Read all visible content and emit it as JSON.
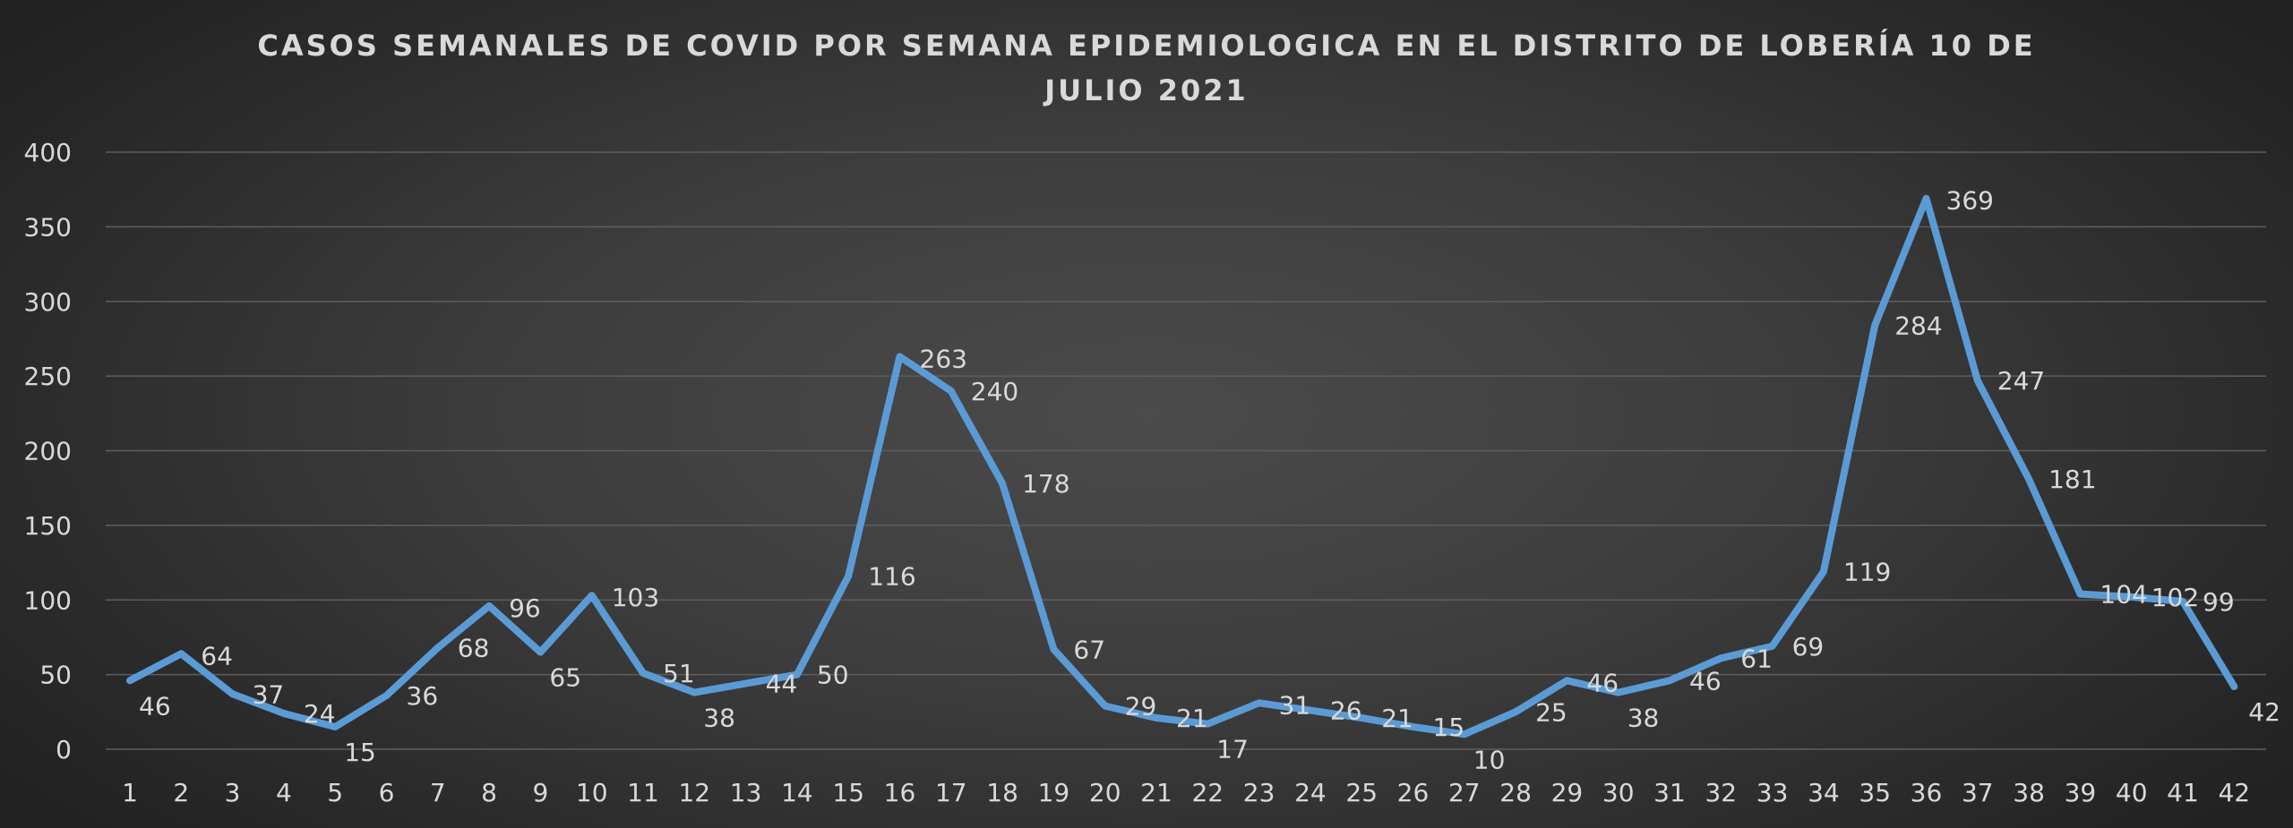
{
  "chart_data": {
    "type": "line",
    "title_lines": [
      "CASOS SEMANALES DE COVID POR SEMANA EPIDEMIOLOGICA EN EL DISTRITO DE LOBERÍA 10 DE",
      "JULIO 2021"
    ],
    "xlabel": "",
    "ylabel": "",
    "ylim": [
      0,
      400
    ],
    "yticks": [
      0,
      50,
      100,
      150,
      200,
      250,
      300,
      350,
      400
    ],
    "grid": true,
    "legend": "none",
    "x": [
      "1",
      "2",
      "3",
      "4",
      "5",
      "6",
      "7",
      "8",
      "9",
      "10",
      "11",
      "12",
      "13",
      "14",
      "15",
      "16",
      "17",
      "18",
      "19",
      "20",
      "21",
      "22",
      "23",
      "24",
      "25",
      "26",
      "27",
      "28",
      "29",
      "30",
      "31",
      "32",
      "33",
      "34",
      "35",
      "36",
      "37",
      "38",
      "39",
      "40",
      "41",
      "42"
    ],
    "series": [
      {
        "color": "#5b9bd5",
        "values": [
          46,
          64,
          37,
          24,
          15,
          36,
          68,
          96,
          65,
          103,
          51,
          38,
          44,
          50,
          116,
          263,
          240,
          178,
          67,
          29,
          21,
          17,
          31,
          26,
          21,
          15,
          10,
          25,
          46,
          38,
          46,
          61,
          69,
          119,
          284,
          369,
          247,
          181,
          104,
          102,
          99,
          42
        ]
      }
    ]
  },
  "colors": {
    "line": "#5b9bd5",
    "text": "#d9d9d9",
    "grid": "#5e5e5e"
  }
}
